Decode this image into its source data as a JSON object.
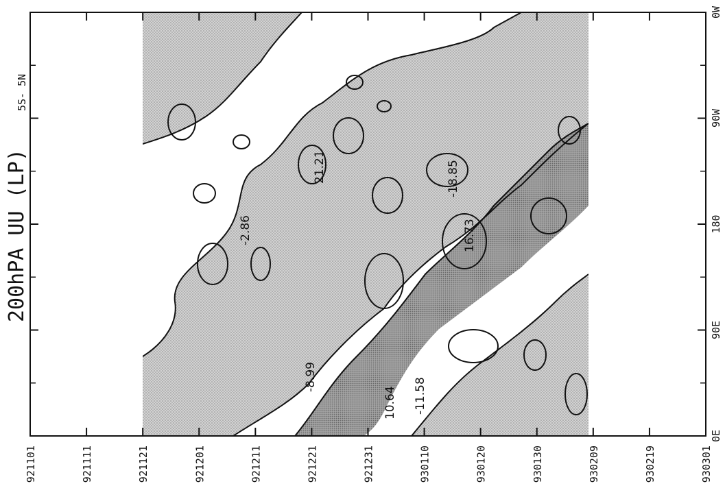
{
  "chart_data": {
    "type": "heatmap",
    "title": "200hPA UU (LP)",
    "subtitle": "5S- 5N",
    "x_axis": {
      "quantity": "date (yymmdd)",
      "ticks": [
        "921101",
        "921111",
        "921121",
        "921201",
        "921211",
        "921221",
        "921231",
        "930110",
        "930120",
        "930130",
        "930209",
        "930219",
        "930301"
      ],
      "range": [
        "921101",
        "930301"
      ]
    },
    "y_axis": {
      "quantity": "longitude",
      "ticks": [
        "0E",
        "90E",
        "180",
        "90W",
        "0W"
      ],
      "range": [
        "0E",
        "0W"
      ]
    },
    "data_coverage": [
      "921121",
      "930209"
    ],
    "shading": "values above a threshold are stippled grey; darker grey marks larger magnitudes",
    "contour_labels": [
      {
        "text": "-2.86",
        "date": "921211",
        "lon": 210
      },
      {
        "text": "21.21",
        "date": "921222",
        "lon": 263
      },
      {
        "text": "-18.85",
        "date": "930118",
        "lon": 243
      },
      {
        "text": "16.73",
        "date": "930121",
        "lon": 171
      },
      {
        "text": "-8.99",
        "date": "921221",
        "lon": 42
      },
      {
        "text": "10.64",
        "date": "930104",
        "lon": 12
      },
      {
        "text": "-11.58",
        "date": "930109",
        "lon": 22
      }
    ]
  }
}
